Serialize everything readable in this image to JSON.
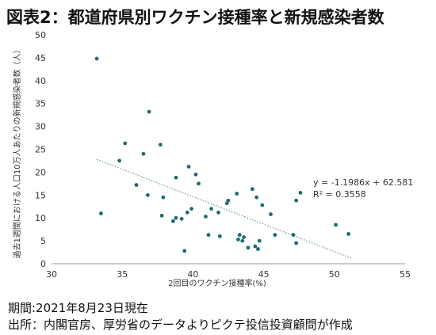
{
  "title": "図表2：都道府県別ワクチン接種率と新規感染者数",
  "footer": {
    "period": "期間:2021年8月23日現在",
    "source": "出所：内閣官房、厚労省のデータよりピクテ投信投資顧問が作成"
  },
  "chart_data": {
    "type": "scatter",
    "xlabel": "2回目のワクチン接種率(%)",
    "ylabel": "過去1週間における人口10万人あたりの新規感染者数（人）",
    "xlim": [
      30,
      55
    ],
    "ylim": [
      0,
      50
    ],
    "xticks": [
      30,
      35,
      40,
      45,
      50,
      55
    ],
    "yticks": [
      0,
      5,
      10,
      15,
      20,
      25,
      30,
      35,
      40,
      45,
      50
    ],
    "grid": false,
    "trendline": {
      "type": "linear",
      "slope": -1.1986,
      "intercept": 62.581,
      "x_range": [
        33.2,
        51.2
      ],
      "style": "dotted",
      "equation": "y = -1.1986x + 62.581",
      "r_squared": "R² = 0.3558"
    },
    "color": "#1f6b6e",
    "points": [
      {
        "x": 33.2,
        "y": 44.8
      },
      {
        "x": 33.5,
        "y": 11.0
      },
      {
        "x": 34.8,
        "y": 22.5
      },
      {
        "x": 35.2,
        "y": 26.3
      },
      {
        "x": 36.0,
        "y": 17.2
      },
      {
        "x": 36.5,
        "y": 24.0
      },
      {
        "x": 36.8,
        "y": 15.0
      },
      {
        "x": 36.9,
        "y": 33.2
      },
      {
        "x": 37.7,
        "y": 26.0
      },
      {
        "x": 37.8,
        "y": 10.5
      },
      {
        "x": 37.9,
        "y": 14.5
      },
      {
        "x": 38.6,
        "y": 9.3
      },
      {
        "x": 38.8,
        "y": 10.0
      },
      {
        "x": 38.8,
        "y": 18.8
      },
      {
        "x": 39.2,
        "y": 9.8
      },
      {
        "x": 39.4,
        "y": 2.8
      },
      {
        "x": 39.6,
        "y": 11.2
      },
      {
        "x": 39.7,
        "y": 21.2
      },
      {
        "x": 39.9,
        "y": 12.0
      },
      {
        "x": 40.2,
        "y": 19.5
      },
      {
        "x": 40.4,
        "y": 17.5
      },
      {
        "x": 40.9,
        "y": 10.3
      },
      {
        "x": 41.1,
        "y": 6.3
      },
      {
        "x": 41.3,
        "y": 12.0
      },
      {
        "x": 41.8,
        "y": 11.2
      },
      {
        "x": 41.9,
        "y": 6.0
      },
      {
        "x": 42.4,
        "y": 13.2
      },
      {
        "x": 42.5,
        "y": 13.8
      },
      {
        "x": 43.1,
        "y": 15.3
      },
      {
        "x": 43.2,
        "y": 5.3
      },
      {
        "x": 43.3,
        "y": 6.3
      },
      {
        "x": 43.5,
        "y": 5.0
      },
      {
        "x": 43.6,
        "y": 5.8
      },
      {
        "x": 43.9,
        "y": 3.5
      },
      {
        "x": 44.2,
        "y": 16.3
      },
      {
        "x": 44.4,
        "y": 3.8
      },
      {
        "x": 44.5,
        "y": 14.5
      },
      {
        "x": 44.6,
        "y": 3.2
      },
      {
        "x": 44.7,
        "y": 5.0
      },
      {
        "x": 44.9,
        "y": 12.8
      },
      {
        "x": 45.5,
        "y": 10.8
      },
      {
        "x": 45.8,
        "y": 6.3
      },
      {
        "x": 47.1,
        "y": 6.3
      },
      {
        "x": 47.3,
        "y": 4.5
      },
      {
        "x": 47.3,
        "y": 13.8
      },
      {
        "x": 47.6,
        "y": 15.5
      },
      {
        "x": 50.1,
        "y": 8.5
      },
      {
        "x": 51.0,
        "y": 6.5
      }
    ]
  }
}
